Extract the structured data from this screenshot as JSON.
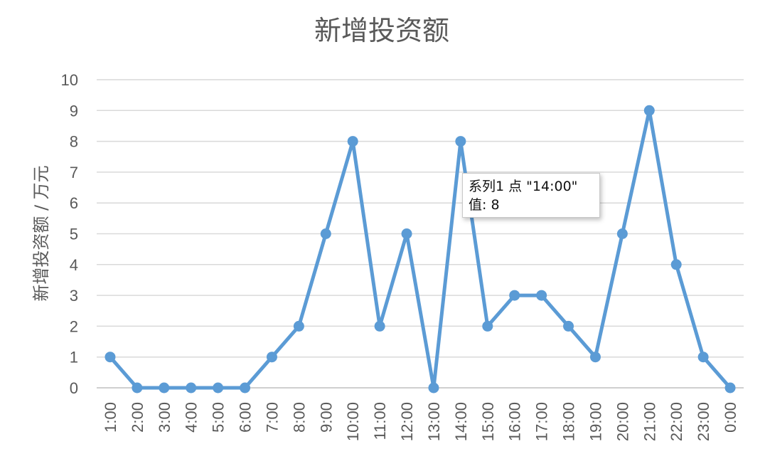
{
  "chart_data": {
    "type": "line",
    "title": "新增投资额",
    "xlabel": "",
    "ylabel": "新增投资额 / 万元",
    "categories": [
      "1:00",
      "2:00",
      "3:00",
      "4:00",
      "5:00",
      "6:00",
      "7:00",
      "8:00",
      "9:00",
      "10:00",
      "11:00",
      "12:00",
      "13:00",
      "14:00",
      "15:00",
      "16:00",
      "17:00",
      "18:00",
      "19:00",
      "20:00",
      "21:00",
      "22:00",
      "23:00",
      "0:00"
    ],
    "series": [
      {
        "values": [
          1,
          0,
          0,
          0,
          0,
          0,
          1,
          2,
          5,
          8,
          2,
          5,
          0,
          8,
          2,
          3,
          3,
          2,
          1,
          5,
          9,
          4,
          1,
          0
        ]
      }
    ],
    "ylim": [
      0,
      10
    ],
    "yticks": [
      "0",
      "1",
      "2",
      "3",
      "4",
      "5",
      "6",
      "7",
      "8",
      "9",
      "10"
    ],
    "grid": true,
    "legend": "none",
    "colors": {
      "series": "#5b9bd5",
      "grid": "#d9d9d9",
      "text": "#595959"
    }
  },
  "tooltip": {
    "line1": "系列1 点 \"14:00\"",
    "line2": "值: 8"
  }
}
